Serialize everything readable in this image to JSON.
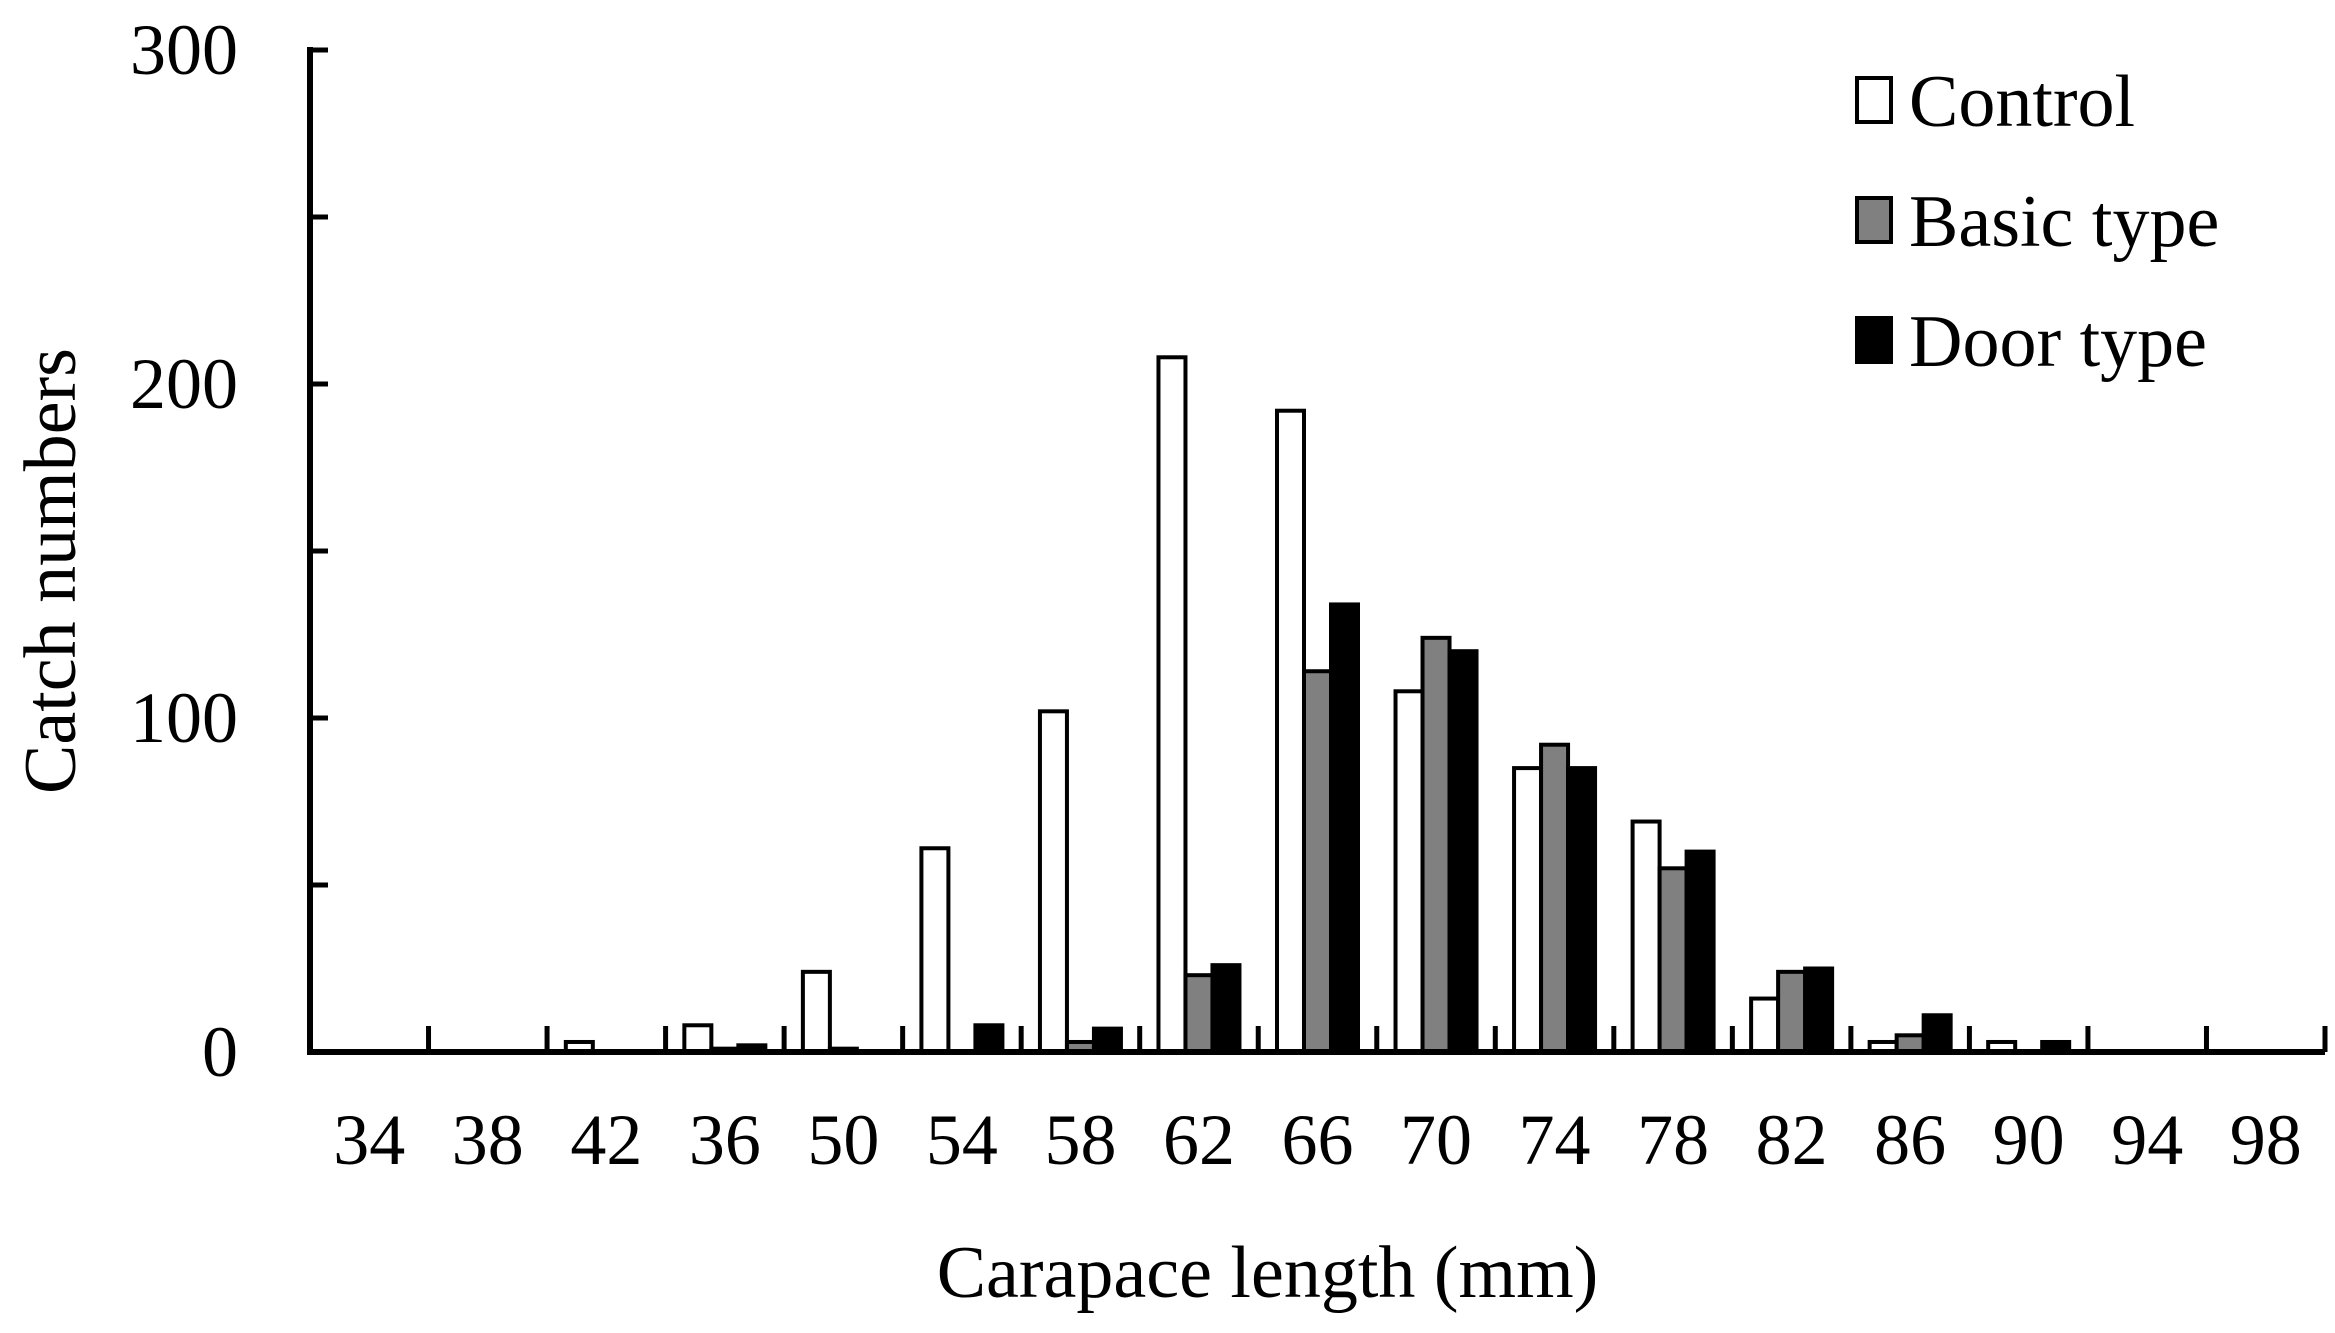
{
  "chart_data": {
    "type": "bar",
    "title": "",
    "xlabel": "Carapace length (mm)",
    "ylabel": "Catch numbers",
    "categories": [
      "34",
      "38",
      "42",
      "36",
      "50",
      "54",
      "58",
      "62",
      "66",
      "70",
      "74",
      "78",
      "82",
      "86",
      "90",
      "94",
      "98"
    ],
    "ylim": [
      0,
      300
    ],
    "yticks": [
      "0",
      "100",
      "200",
      "300"
    ],
    "ytick_values": [
      0,
      100,
      200,
      300
    ],
    "minor_ytick_values": [
      50,
      150,
      250
    ],
    "grid": false,
    "legend": "top-right",
    "series": [
      {
        "name": "Control",
        "color": "#ffffff",
        "values": [
          0,
          0,
          3,
          8,
          24,
          61,
          102,
          208,
          192,
          108,
          85,
          69,
          16,
          3,
          3,
          0,
          0
        ]
      },
      {
        "name": "Basic type",
        "color": "#808080",
        "values": [
          0,
          0,
          0,
          1,
          1,
          0,
          3,
          23,
          114,
          124,
          92,
          55,
          24,
          5,
          0,
          0,
          0
        ]
      },
      {
        "name": "Door type",
        "color": "#000000",
        "values": [
          0,
          0,
          0,
          2,
          0,
          8,
          7,
          26,
          134,
          120,
          85,
          60,
          25,
          11,
          3,
          0,
          0
        ]
      }
    ]
  }
}
